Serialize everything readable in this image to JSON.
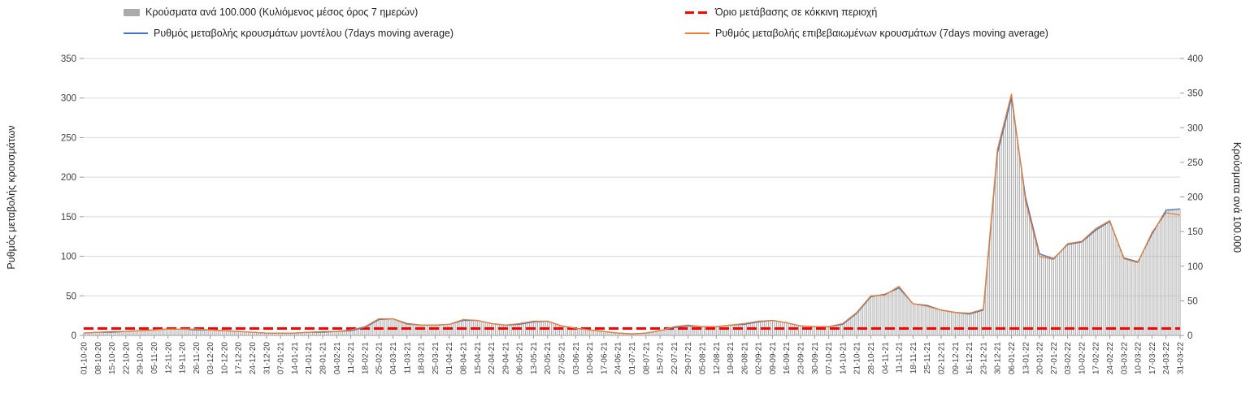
{
  "legend": {
    "cases": "Κρούσματα ανά 100.000 (Κυλιόμενος μέσος όρος 7 ημερών)",
    "threshold": "Όριο μετάβασης σε κόκκινη περιοχή",
    "model": "Ρυθμός μεταβολής κρουσμάτων μοντέλου (7days moving average)",
    "confirmed": "Ρυθμός μεταβολής επιβεβαιωμένων κρουσμάτων (7days moving average)"
  },
  "axes": {
    "left_label": "Ρυθμός μεταβολής κρουσμάτων",
    "right_label": "Κρούσματα ανά 100.000"
  },
  "colors": {
    "bars": "#ababab",
    "model": "#4472c4",
    "confirmed": "#ed7d31",
    "threshold": "#ff0000",
    "grid": "#d9d9d9",
    "axis": "#9a9a9a",
    "text": "#3f3f3f"
  },
  "chart_data": {
    "type": "bar+line",
    "title": "",
    "left_axis": {
      "min": 0,
      "max": 350,
      "step": 50,
      "label": "Ρυθμός μεταβολής κρουσμάτων"
    },
    "right_axis": {
      "min": 0,
      "max": 400,
      "step": 50,
      "label": "Κρούσματα ανά 100.000"
    },
    "grid": true,
    "legend_position": "top",
    "threshold": {
      "value": 10,
      "axis": "right",
      "label": "Όριο μετάβασης σε κόκκινη περιοχή"
    },
    "x": [
      "01-10-20",
      "08-10-20",
      "15-10-20",
      "22-10-20",
      "29-10-20",
      "05-11-20",
      "12-11-20",
      "19-11-20",
      "26-11-20",
      "03-12-20",
      "10-12-20",
      "17-12-20",
      "24-12-20",
      "31-12-20",
      "07-01-21",
      "14-01-21",
      "21-01-21",
      "28-01-21",
      "04-02-21",
      "11-02-21",
      "18-02-21",
      "25-02-21",
      "04-03-21",
      "11-03-21",
      "18-03-21",
      "25-03-21",
      "01-04-21",
      "08-04-21",
      "15-04-21",
      "22-04-21",
      "29-04-21",
      "06-05-21",
      "13-05-21",
      "20-05-21",
      "27-05-21",
      "03-06-21",
      "10-06-21",
      "17-06-21",
      "24-06-21",
      "01-07-21",
      "08-07-21",
      "15-07-21",
      "22-07-21",
      "29-07-21",
      "05-08-21",
      "12-08-21",
      "19-08-21",
      "26-08-21",
      "02-09-21",
      "09-09-21",
      "16-09-21",
      "23-09-21",
      "30-09-21",
      "07-10-21",
      "14-10-21",
      "21-10-21",
      "28-10-21",
      "04-11-21",
      "11-11-21",
      "18-11-21",
      "25-11-21",
      "02-12-21",
      "09-12-21",
      "16-12-21",
      "23-12-21",
      "30-12-21",
      "06-01-22",
      "13-01-22",
      "20-01-22",
      "27-01-22",
      "03-02-22",
      "10-02-22",
      "17-02-22",
      "24-02-22",
      "03-03-22",
      "10-03-22",
      "17-03-22",
      "24-03-22",
      "31-03-22"
    ],
    "series": [
      {
        "name": "Κρούσματα ανά 100.000 (Κυλιόμενος μέσος όρος 7 ημερών)",
        "type": "bar",
        "axis": "right",
        "color_key": "bars",
        "values": [
          4,
          5,
          5,
          6,
          7,
          8,
          9,
          9,
          9,
          8,
          7,
          6,
          5,
          4,
          4,
          4,
          5,
          5,
          6,
          8,
          12,
          24,
          24,
          17,
          15,
          15,
          16,
          22,
          22,
          17,
          15,
          17,
          20,
          21,
          14,
          10,
          8,
          6,
          4,
          3,
          4,
          7,
          12,
          14,
          13,
          13,
          15,
          17,
          20,
          22,
          18,
          14,
          13,
          13,
          17,
          33,
          57,
          59,
          70,
          46,
          43,
          37,
          33,
          32,
          38,
          268,
          348,
          198,
          117,
          111,
          132,
          136,
          154,
          166,
          112,
          106,
          148,
          183,
          183
        ]
      },
      {
        "name": "Ρυθμός μεταβολής κρουσμάτων μοντέλου (7days moving average)",
        "type": "line",
        "axis": "left",
        "color_key": "model",
        "values": [
          3,
          4,
          4,
          5,
          6,
          7,
          8,
          8,
          7,
          7,
          6,
          5,
          4,
          3,
          3,
          3,
          4,
          4,
          5,
          6,
          10,
          20,
          21,
          15,
          13,
          13,
          14,
          19,
          19,
          15,
          13,
          14,
          17,
          18,
          12,
          9,
          7,
          5,
          3,
          2,
          3,
          6,
          10,
          12,
          11,
          11,
          13,
          14,
          17,
          19,
          16,
          12,
          11,
          11,
          14,
          28,
          49,
          52,
          60,
          40,
          38,
          32,
          29,
          27,
          32,
          230,
          300,
          175,
          103,
          97,
          115,
          118,
          133,
          144,
          98,
          93,
          128,
          158,
          160
        ]
      },
      {
        "name": "Ρυθμός μεταβολής επιβεβαιωμένων κρουσμάτων (7days moving average)",
        "type": "line",
        "axis": "left",
        "color_key": "confirmed",
        "values": [
          3,
          4,
          5,
          5,
          6,
          7,
          8,
          8,
          8,
          7,
          6,
          5,
          4,
          3,
          3,
          3,
          4,
          5,
          5,
          7,
          11,
          21,
          21,
          14,
          13,
          13,
          14,
          20,
          19,
          15,
          13,
          15,
          18,
          18,
          12,
          9,
          7,
          5,
          3,
          2,
          3,
          6,
          11,
          13,
          11,
          11,
          13,
          15,
          18,
          19,
          16,
          12,
          11,
          11,
          15,
          29,
          50,
          51,
          62,
          40,
          37,
          32,
          29,
          28,
          33,
          235,
          305,
          170,
          100,
          96,
          116,
          119,
          135,
          145,
          97,
          92,
          130,
          155,
          152
        ]
      }
    ]
  }
}
